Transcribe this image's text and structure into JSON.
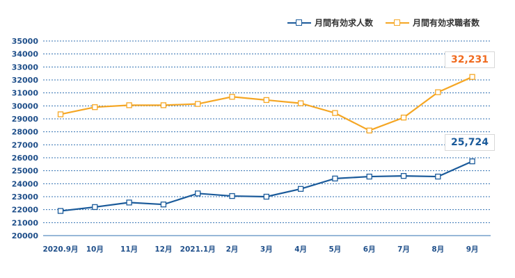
{
  "legend": [
    {
      "name": "月間有効求人数",
      "color": "#1a5a9a"
    },
    {
      "name": "月間有効求職者数",
      "color": "#f5a623"
    }
  ],
  "callouts": {
    "orange_last": "32,231",
    "blue_last": "25,724",
    "orange_color": "#f06a1e",
    "blue_color": "#1a5a9a"
  },
  "chart_data": {
    "type": "line",
    "categories": [
      "2020.9月",
      "10月",
      "11月",
      "12月",
      "2021.1月",
      "2月",
      "3月",
      "4月",
      "5月",
      "6月",
      "7月",
      "8月",
      "9月"
    ],
    "ylim": [
      20000,
      35000
    ],
    "yticks": [
      20000,
      21000,
      22000,
      23000,
      24000,
      25000,
      26000,
      27000,
      28000,
      29000,
      30000,
      31000,
      32000,
      33000,
      34000,
      35000
    ],
    "grid": true,
    "legend_position": "top-right",
    "series": [
      {
        "name": "月間有効求人数",
        "color": "#1a5a9a",
        "values": [
          21900,
          22200,
          22550,
          22400,
          23250,
          23050,
          23000,
          23600,
          24400,
          24550,
          24600,
          24550,
          25724
        ]
      },
      {
        "name": "月間有効求職者数",
        "color": "#f5a623",
        "values": [
          29350,
          29900,
          30050,
          30050,
          30150,
          30700,
          30450,
          30200,
          29450,
          28100,
          29100,
          31050,
          32231
        ]
      }
    ]
  }
}
